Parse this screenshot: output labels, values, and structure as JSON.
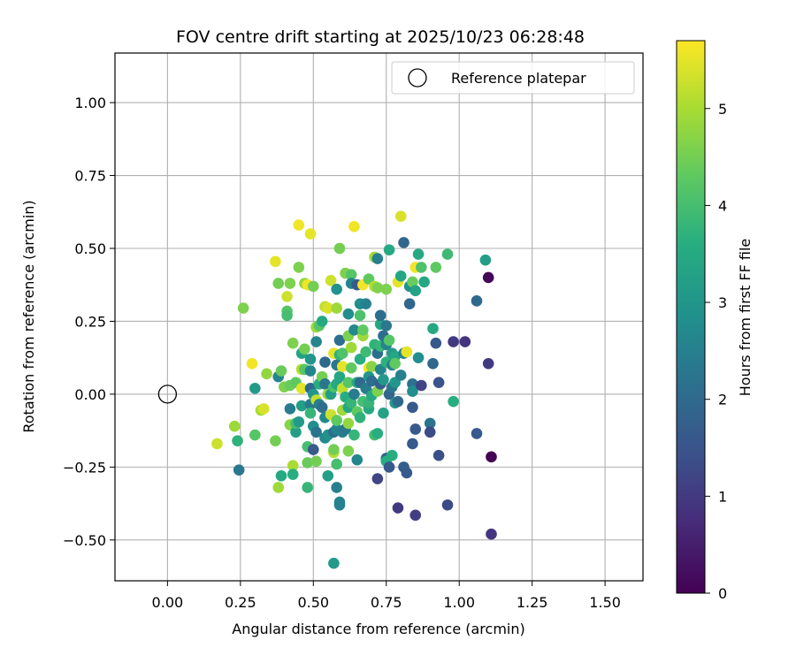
{
  "chart_data": {
    "type": "scatter",
    "title": "FOV centre drift starting at 2025/10/23 06:28:48",
    "xlabel": "Angular distance from reference (arcmin)",
    "ylabel": "Rotation from reference (arcmin)",
    "xlim": [
      -0.18,
      1.63
    ],
    "ylim": [
      -0.64,
      1.17
    ],
    "xticks": [
      "0.00",
      "0.25",
      "0.50",
      "0.75",
      "1.00",
      "1.25",
      "1.50"
    ],
    "yticks": [
      "−0.50",
      "−0.25",
      "0.00",
      "0.25",
      "0.50",
      "0.75",
      "1.00"
    ],
    "grid": true,
    "legend": {
      "label": "Reference platepar",
      "position": "top-right"
    },
    "reference_point": {
      "x": 0.0,
      "y": 0.0
    },
    "colorbar": {
      "label": "Hours from first FF file",
      "range": [
        0,
        5.7
      ],
      "ticks": [
        "0",
        "1",
        "2",
        "3",
        "4",
        "5"
      ],
      "colormap": "viridis"
    },
    "points": [
      [
        0.17,
        -0.17,
        5.3
      ],
      [
        0.23,
        -0.11,
        4.9
      ],
      [
        0.24,
        -0.16,
        3.7
      ],
      [
        0.245,
        -0.26,
        2.3
      ],
      [
        0.26,
        0.295,
        4.6
      ],
      [
        0.29,
        0.105,
        5.6
      ],
      [
        0.3,
        -0.14,
        4.2
      ],
      [
        0.3,
        0.02,
        3.1
      ],
      [
        0.32,
        -0.055,
        5.0
      ],
      [
        0.33,
        -0.05,
        5.4
      ],
      [
        0.34,
        0.07,
        4.8
      ],
      [
        0.37,
        -0.16,
        4.5
      ],
      [
        0.37,
        0.455,
        5.5
      ],
      [
        0.38,
        0.38,
        4.5
      ],
      [
        0.38,
        0.06,
        2.6
      ],
      [
        0.38,
        -0.32,
        4.9
      ],
      [
        0.39,
        -0.28,
        3.5
      ],
      [
        0.39,
        0.08,
        4.4
      ],
      [
        0.4,
        0.025,
        4.6
      ],
      [
        0.41,
        0.285,
        4.2
      ],
      [
        0.41,
        0.27,
        4.0
      ],
      [
        0.41,
        0.335,
        5.3
      ],
      [
        0.42,
        -0.05,
        2.4
      ],
      [
        0.42,
        0.38,
        4.6
      ],
      [
        0.42,
        0.03,
        4.4
      ],
      [
        0.42,
        -0.105,
        4.7
      ],
      [
        0.43,
        -0.245,
        5.0
      ],
      [
        0.43,
        -0.275,
        3.6
      ],
      [
        0.43,
        0.175,
        4.6
      ],
      [
        0.44,
        0.04,
        4.3
      ],
      [
        0.44,
        -0.13,
        3.2
      ],
      [
        0.44,
        -0.1,
        4.0
      ],
      [
        0.45,
        0.58,
        5.6
      ],
      [
        0.45,
        0.435,
        4.6
      ],
      [
        0.45,
        -0.095,
        3.1
      ],
      [
        0.46,
        0.02,
        5.5
      ],
      [
        0.46,
        0.085,
        5.1
      ],
      [
        0.46,
        -0.04,
        3.2
      ],
      [
        0.46,
        0.14,
        3.3
      ],
      [
        0.47,
        0.38,
        4.8
      ],
      [
        0.47,
        0.155,
        4.5
      ],
      [
        0.47,
        0.085,
        4.2
      ],
      [
        0.48,
        -0.235,
        4.4
      ],
      [
        0.48,
        0.375,
        5.6
      ],
      [
        0.48,
        -0.32,
        3.8
      ],
      [
        0.48,
        -0.18,
        4.0
      ],
      [
        0.49,
        0.02,
        2.0
      ],
      [
        0.49,
        0.55,
        5.5
      ],
      [
        0.49,
        0.08,
        2.6
      ],
      [
        0.49,
        -0.035,
        2.4
      ],
      [
        0.49,
        -0.065,
        3.8
      ],
      [
        0.49,
        0.12,
        3.0
      ],
      [
        0.5,
        0.37,
        4.5
      ],
      [
        0.5,
        -0.19,
        1.6
      ],
      [
        0.5,
        -0.11,
        2.8
      ],
      [
        0.5,
        0.0,
        3.0
      ],
      [
        0.51,
        -0.02,
        5.2
      ],
      [
        0.51,
        0.23,
        4.9
      ],
      [
        0.51,
        -0.23,
        4.5
      ],
      [
        0.51,
        0.18,
        2.6
      ],
      [
        0.51,
        -0.13,
        2.2
      ],
      [
        0.52,
        0.235,
        4.2
      ],
      [
        0.52,
        -0.035,
        2.5
      ],
      [
        0.52,
        0.035,
        3.6
      ],
      [
        0.53,
        -0.045,
        2.1
      ],
      [
        0.53,
        0.25,
        3.5
      ],
      [
        0.53,
        0.06,
        4.5
      ],
      [
        0.54,
        0.3,
        5.2
      ],
      [
        0.54,
        -0.08,
        2.7
      ],
      [
        0.54,
        0.11,
        2.0
      ],
      [
        0.54,
        0.035,
        2.3
      ],
      [
        0.54,
        -0.15,
        2.7
      ],
      [
        0.55,
        0.295,
        5.4
      ],
      [
        0.55,
        -0.28,
        3.2
      ],
      [
        0.55,
        0.0,
        4.8
      ],
      [
        0.55,
        -0.14,
        2.9
      ],
      [
        0.56,
        0.39,
        5.3
      ],
      [
        0.56,
        0.0,
        3.2
      ],
      [
        0.56,
        -0.07,
        5.3
      ],
      [
        0.57,
        -0.58,
        3.1
      ],
      [
        0.57,
        0.14,
        5.5
      ],
      [
        0.57,
        -0.2,
        5.1
      ],
      [
        0.57,
        -0.19,
        4.5
      ],
      [
        0.57,
        0.025,
        4.1
      ],
      [
        0.57,
        -0.13,
        2.1
      ],
      [
        0.58,
        0.36,
        2.9
      ],
      [
        0.58,
        -0.12,
        2.6
      ],
      [
        0.58,
        0.295,
        4.9
      ],
      [
        0.58,
        -0.24,
        4.0
      ],
      [
        0.58,
        -0.32,
        2.5
      ],
      [
        0.58,
        0.1,
        2.3
      ],
      [
        0.58,
        0.035,
        3.5
      ],
      [
        0.58,
        -0.09,
        4.3
      ],
      [
        0.59,
        0.5,
        4.5
      ],
      [
        0.59,
        -0.37,
        2.6
      ],
      [
        0.59,
        -0.38,
        2.5
      ],
      [
        0.59,
        0.185,
        2.1
      ],
      [
        0.59,
        0.135,
        3.7
      ],
      [
        0.59,
        0.06,
        3.4
      ],
      [
        0.6,
        0.095,
        5.5
      ],
      [
        0.6,
        0.02,
        5.2
      ],
      [
        0.6,
        -0.055,
        4.9
      ],
      [
        0.6,
        0.14,
        4.1
      ],
      [
        0.6,
        -0.13,
        2.5
      ],
      [
        0.61,
        0.415,
        4.6
      ],
      [
        0.61,
        -0.01,
        3.6
      ],
      [
        0.61,
        -0.12,
        2.3
      ],
      [
        0.62,
        0.2,
        4.6
      ],
      [
        0.62,
        0.275,
        2.8
      ],
      [
        0.62,
        -0.195,
        4.6
      ],
      [
        0.62,
        0.04,
        4.2
      ],
      [
        0.62,
        -0.045,
        3.4
      ],
      [
        0.62,
        -0.1,
        4.8
      ],
      [
        0.63,
        0.41,
        4.2
      ],
      [
        0.63,
        0.16,
        4.9
      ],
      [
        0.63,
        0.38,
        2.6
      ],
      [
        0.63,
        0.09,
        4.3
      ],
      [
        0.63,
        -0.03,
        3.8
      ],
      [
        0.64,
        0.575,
        5.6
      ],
      [
        0.64,
        0.0,
        2.4
      ],
      [
        0.64,
        -0.14,
        3.8
      ],
      [
        0.64,
        0.22,
        2.7
      ],
      [
        0.65,
        0.375,
        1.6
      ],
      [
        0.65,
        0.04,
        3.5
      ],
      [
        0.65,
        -0.06,
        4.3
      ],
      [
        0.65,
        -0.225,
        2.6
      ],
      [
        0.66,
        0.04,
        2.0
      ],
      [
        0.66,
        -0.08,
        3.7
      ],
      [
        0.66,
        0.31,
        2.8
      ],
      [
        0.66,
        0.12,
        3.6
      ],
      [
        0.66,
        0.27,
        4.1
      ],
      [
        0.67,
        0.2,
        4.9
      ],
      [
        0.67,
        0.22,
        4.3
      ],
      [
        0.67,
        0.375,
        5.6
      ],
      [
        0.67,
        -0.025,
        4.0
      ],
      [
        0.68,
        0.02,
        2.4
      ],
      [
        0.68,
        0.31,
        2.5
      ],
      [
        0.68,
        0.145,
        3.9
      ],
      [
        0.69,
        -0.05,
        3.5
      ],
      [
        0.69,
        -0.03,
        3.8
      ],
      [
        0.69,
        0.395,
        4.3
      ],
      [
        0.69,
        0.09,
        5.6
      ],
      [
        0.69,
        0.06,
        3.0
      ],
      [
        0.7,
        0.0,
        2.5
      ],
      [
        0.7,
        0.045,
        2.1
      ],
      [
        0.7,
        -0.005,
        3.5
      ],
      [
        0.7,
        0.095,
        4.7
      ],
      [
        0.71,
        0.47,
        4.9
      ],
      [
        0.71,
        -0.14,
        4.0
      ],
      [
        0.71,
        0.37,
        5.1
      ],
      [
        0.71,
        0.17,
        3.7
      ],
      [
        0.72,
        0.465,
        2.5
      ],
      [
        0.72,
        -0.29,
        1.2
      ],
      [
        0.72,
        0.365,
        4.6
      ],
      [
        0.72,
        -0.135,
        3.6
      ],
      [
        0.72,
        0.01,
        4.6
      ],
      [
        0.72,
        0.14,
        2.1
      ],
      [
        0.73,
        0.24,
        3.4
      ],
      [
        0.73,
        0.27,
        2.1
      ],
      [
        0.73,
        0.085,
        2.6
      ],
      [
        0.73,
        0.165,
        3.8
      ],
      [
        0.73,
        0.035,
        1.8
      ],
      [
        0.74,
        0.05,
        3.1
      ],
      [
        0.74,
        -0.065,
        3.3
      ],
      [
        0.74,
        0.2,
        2.1
      ],
      [
        0.75,
        0.36,
        4.6
      ],
      [
        0.75,
        -0.22,
        1.9
      ],
      [
        0.75,
        0.235,
        2.3
      ],
      [
        0.75,
        0.17,
        2.6
      ],
      [
        0.75,
        0.11,
        3.7
      ],
      [
        0.75,
        -0.23,
        3.6
      ],
      [
        0.76,
        0.495,
        3.5
      ],
      [
        0.76,
        0.185,
        4.2
      ],
      [
        0.76,
        -0.25,
        1.6
      ],
      [
        0.76,
        0.0,
        1.9
      ],
      [
        0.77,
        0.1,
        2.5
      ],
      [
        0.77,
        -0.21,
        3.6
      ],
      [
        0.77,
        0.025,
        2.3
      ],
      [
        0.77,
        0.14,
        3.1
      ],
      [
        0.78,
        -0.03,
        3.0
      ],
      [
        0.78,
        0.04,
        3.0
      ],
      [
        0.78,
        0.13,
        3.4
      ],
      [
        0.78,
        0.105,
        4.3
      ],
      [
        0.79,
        -0.39,
        1.0
      ],
      [
        0.79,
        -0.025,
        2.0
      ],
      [
        0.79,
        0.385,
        5.5
      ],
      [
        0.8,
        0.61,
        5.4
      ],
      [
        0.8,
        0.065,
        2.5
      ],
      [
        0.8,
        0.405,
        3.4
      ],
      [
        0.81,
        0.14,
        2.6
      ],
      [
        0.81,
        0.52,
        1.9
      ],
      [
        0.81,
        -0.25,
        1.7
      ],
      [
        0.82,
        0.145,
        5.5
      ],
      [
        0.82,
        -0.27,
        1.6
      ],
      [
        0.83,
        0.31,
        1.9
      ],
      [
        0.83,
        0.37,
        2.9
      ],
      [
        0.84,
        0.385,
        4.4
      ],
      [
        0.84,
        0.035,
        2.2
      ],
      [
        0.84,
        -0.045,
        1.6
      ],
      [
        0.84,
        0.01,
        2.8
      ],
      [
        0.84,
        -0.17,
        1.6
      ],
      [
        0.85,
        -0.415,
        1.1
      ],
      [
        0.85,
        0.435,
        5.6
      ],
      [
        0.85,
        -0.12,
        1.6
      ],
      [
        0.85,
        0.355,
        3.3
      ],
      [
        0.86,
        0.125,
        2.8
      ],
      [
        0.86,
        0.48,
        3.5
      ],
      [
        0.87,
        0.435,
        4.1
      ],
      [
        0.87,
        0.03,
        1.2
      ],
      [
        0.88,
        0.385,
        3.4
      ],
      [
        0.9,
        -0.1,
        2.2
      ],
      [
        0.9,
        -0.13,
        1.3
      ],
      [
        0.91,
        0.105,
        1.9
      ],
      [
        0.91,
        0.225,
        3.5
      ],
      [
        0.92,
        0.435,
        4.3
      ],
      [
        0.92,
        0.175,
        1.6
      ],
      [
        0.93,
        0.04,
        1.5
      ],
      [
        0.93,
        -0.21,
        1.4
      ],
      [
        0.96,
        0.48,
        3.9
      ],
      [
        0.96,
        -0.38,
        1.3
      ],
      [
        0.98,
        0.18,
        1.0
      ],
      [
        0.98,
        -0.025,
        3.6
      ],
      [
        1.02,
        0.18,
        0.9
      ],
      [
        1.06,
        0.32,
        2.0
      ],
      [
        1.06,
        -0.135,
        1.6
      ],
      [
        1.09,
        0.46,
        3.2
      ],
      [
        1.1,
        0.4,
        0.1
      ],
      [
        1.1,
        0.105,
        1.0
      ],
      [
        1.11,
        -0.48,
        0.9
      ],
      [
        1.11,
        -0.215,
        0.0
      ]
    ]
  }
}
